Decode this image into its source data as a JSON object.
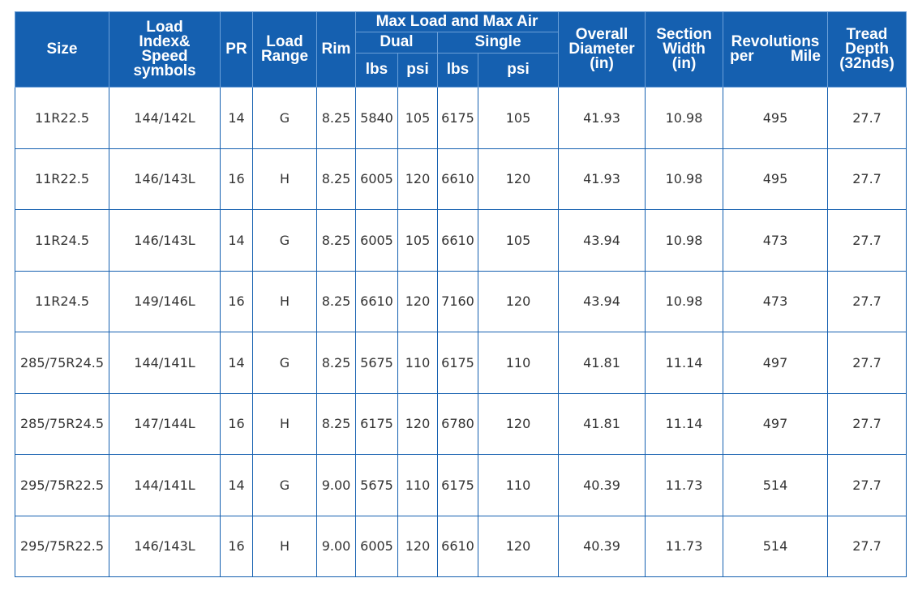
{
  "headers": {
    "size": "Size",
    "load_index": "Load Index& Speed symbols",
    "pr": "PR",
    "load_range": "Load Range",
    "rim": "Rim",
    "max_load_air": "Max Load and Max Air",
    "dual": "Dual",
    "single": "Single",
    "lbs1": "lbs",
    "psi1": "psi",
    "lbs2": "lbs",
    "psi2": "psi",
    "overall_diameter": "Overall Diameter (in)",
    "section_width": "Section Width (in)",
    "revolutions": "Revolutions per Mile",
    "tread_depth": "Tread Depth (32nds)"
  },
  "rows": [
    [
      "11R22.5",
      "144/142L",
      "14",
      "G",
      "8.25",
      "5840",
      "105",
      "6175",
      "105",
      "41.93",
      "10.98",
      "495",
      "27.7"
    ],
    [
      "11R22.5",
      "146/143L",
      "16",
      "H",
      "8.25",
      "6005",
      "120",
      "6610",
      "120",
      "41.93",
      "10.98",
      "495",
      "27.7"
    ],
    [
      "11R24.5",
      "146/143L",
      "14",
      "G",
      "8.25",
      "6005",
      "105",
      "6610",
      "105",
      "43.94",
      "10.98",
      "473",
      "27.7"
    ],
    [
      "11R24.5",
      "149/146L",
      "16",
      "H",
      "8.25",
      "6610",
      "120",
      "7160",
      "120",
      "43.94",
      "10.98",
      "473",
      "27.7"
    ],
    [
      "285/75R24.5",
      "144/141L",
      "14",
      "G",
      "8.25",
      "5675",
      "110",
      "6175",
      "110",
      "41.81",
      "11.14",
      "497",
      "27.7"
    ],
    [
      "285/75R24.5",
      "147/144L",
      "16",
      "H",
      "8.25",
      "6175",
      "120",
      "6780",
      "120",
      "41.81",
      "11.14",
      "497",
      "27.7"
    ],
    [
      "295/75R22.5",
      "144/141L",
      "14",
      "G",
      "9.00",
      "5675",
      "110",
      "6175",
      "110",
      "40.39",
      "11.73",
      "514",
      "27.7"
    ],
    [
      "295/75R22.5",
      "146/143L",
      "16",
      "H",
      "9.00",
      "6005",
      "120",
      "6610",
      "120",
      "40.39",
      "11.73",
      "514",
      "27.7"
    ]
  ]
}
